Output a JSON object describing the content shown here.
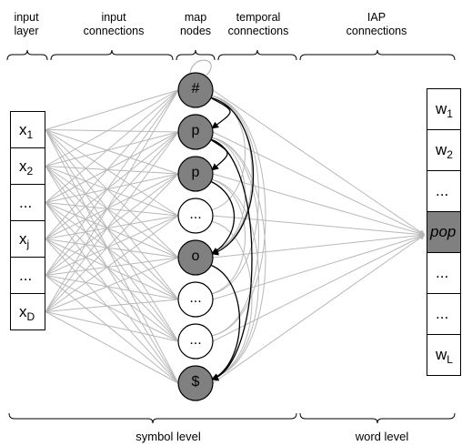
{
  "headers": {
    "input_layer": "input\nlayer",
    "input_connections": "input\nconnections",
    "map_nodes": "map\nnodes",
    "temporal_connections": "temporal\nconnections",
    "iap_connections": "IAP\nconnections"
  },
  "footer": {
    "symbol_level": "symbol level",
    "word_level": "word level"
  },
  "input_layer": [
    {
      "base": "x",
      "sub": "1"
    },
    {
      "base": "x",
      "sub": "2"
    },
    {
      "base": "...",
      "sub": ""
    },
    {
      "base": "x",
      "sub": "j"
    },
    {
      "base": "...",
      "sub": ""
    },
    {
      "base": "x",
      "sub": "D"
    }
  ],
  "map_nodes": [
    {
      "label": "#",
      "active": true
    },
    {
      "label": "p",
      "active": true
    },
    {
      "label": "p",
      "active": true
    },
    {
      "label": "...",
      "active": false
    },
    {
      "label": "o",
      "active": true
    },
    {
      "label": "...",
      "active": false
    },
    {
      "label": "...",
      "active": false
    },
    {
      "label": "$",
      "active": true
    }
  ],
  "word_layer": [
    {
      "base": "w",
      "sub": "1",
      "highlight": false
    },
    {
      "base": "w",
      "sub": "2",
      "highlight": false
    },
    {
      "base": "...",
      "sub": "",
      "highlight": false
    },
    {
      "base": "pop",
      "sub": "",
      "highlight": true
    },
    {
      "base": "...",
      "sub": "",
      "highlight": false
    },
    {
      "base": "...",
      "sub": "",
      "highlight": false
    },
    {
      "base": "w",
      "sub": "L",
      "highlight": false
    }
  ],
  "colors": {
    "active_node": "#808080",
    "inactive_node": "#ffffff",
    "connection": "#b8b8b8",
    "temporal_link": "#000000",
    "highlight_cell": "#808080"
  }
}
